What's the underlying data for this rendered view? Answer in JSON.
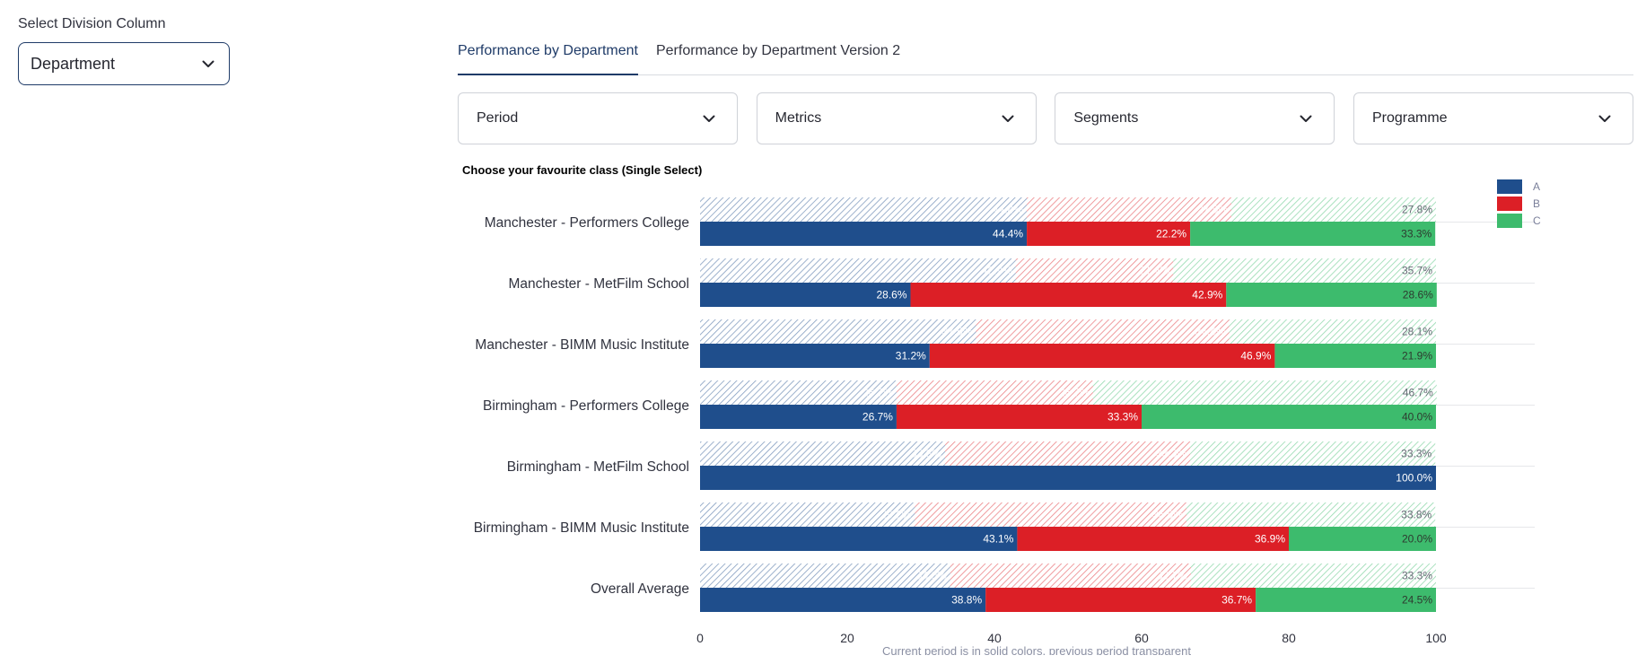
{
  "sidebar": {
    "label": "Select Division Column",
    "selected": "Department"
  },
  "tabs": [
    {
      "label": "Performance by Department",
      "active": true
    },
    {
      "label": "Performance by Department Version 2",
      "active": false
    }
  ],
  "filters": [
    {
      "label": "Period"
    },
    {
      "label": "Metrics"
    },
    {
      "label": "Segments"
    },
    {
      "label": "Programme"
    }
  ],
  "chart_title": "Choose your favourite class (Single Select)",
  "colors": {
    "A": "#1f4e8c",
    "B": "#dc1f26",
    "C": "#3dbb6d"
  },
  "chart_data": {
    "type": "bar",
    "orientation": "horizontal",
    "stacked": true,
    "xlim": [
      0,
      100
    ],
    "xticks": [
      0,
      20,
      40,
      60,
      80,
      100
    ],
    "legend": [
      "A",
      "B",
      "C"
    ],
    "legend_position": "top-right",
    "footnote": "Current period is in solid colors, previous period transparent",
    "categories": [
      "Manchester - Performers College",
      "Manchester - MetFilm School",
      "Manchester - BIMM Music Institute",
      "Birmingham - Performers College",
      "Birmingham - MetFilm School",
      "Birmingham - BIMM Music Institute",
      "Overall Average"
    ],
    "previous": [
      {
        "A": 44.4,
        "B": 27.8,
        "C": 27.8
      },
      {
        "A": 42.9,
        "B": 21.4,
        "C": 35.7
      },
      {
        "A": 37.5,
        "B": 34.4,
        "C": 28.1
      },
      {
        "A": 26.7,
        "B": 26.7,
        "C": 46.7
      },
      {
        "A": 33.3,
        "B": 33.3,
        "C": 33.3
      },
      {
        "A": 29.2,
        "B": 36.9,
        "C": 33.8
      },
      {
        "A": 34.0,
        "B": 32.7,
        "C": 33.3
      }
    ],
    "current": [
      {
        "A": 44.4,
        "B": 22.2,
        "C": 33.3
      },
      {
        "A": 28.6,
        "B": 42.9,
        "C": 28.6
      },
      {
        "A": 31.2,
        "B": 46.9,
        "C": 21.9
      },
      {
        "A": 26.7,
        "B": 33.3,
        "C": 40.0
      },
      {
        "A": 100.0,
        "B": 0,
        "C": 0
      },
      {
        "A": 43.1,
        "B": 36.9,
        "C": 20.0
      },
      {
        "A": 38.8,
        "B": 36.7,
        "C": 24.5
      }
    ]
  }
}
